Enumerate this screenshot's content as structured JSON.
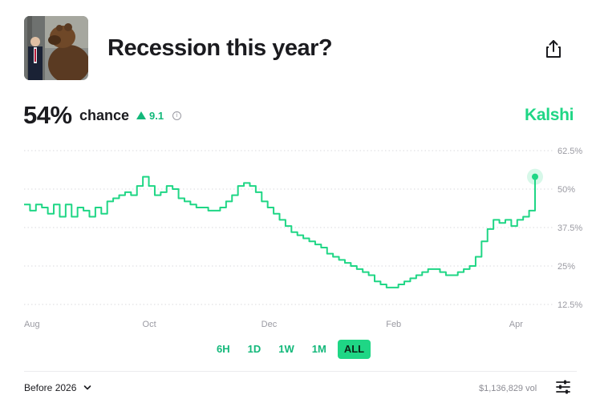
{
  "market": {
    "title": "Recession this year?",
    "brand": "Kalshi"
  },
  "summary": {
    "probability": "54%",
    "probability_label": "chance",
    "change": "9.1",
    "change_direction": "up"
  },
  "range_buttons": [
    {
      "label": "6H",
      "active": false
    },
    {
      "label": "1D",
      "active": false
    },
    {
      "label": "1W",
      "active": false
    },
    {
      "label": "1M",
      "active": false
    },
    {
      "label": "ALL",
      "active": true
    }
  ],
  "footer": {
    "market_select": "Before 2026",
    "volume": "$1,136,829 vol"
  },
  "colors": {
    "accent": "#1fd685",
    "positive": "#13b87a",
    "text": "#1b1b1f",
    "muted": "#8b8b93"
  },
  "icons": [
    "share-icon",
    "info-icon",
    "chevron-down-icon",
    "sliders-icon",
    "triangle-up-icon"
  ],
  "chart_data": {
    "type": "line",
    "title": "",
    "xlabel": "",
    "ylabel": "",
    "x_ticks": [
      "Aug",
      "Oct",
      "Dec",
      "Feb",
      "Apr"
    ],
    "y_ticks": [
      "62.5%",
      "50%",
      "37.5%",
      "25%",
      "12.5%"
    ],
    "ylim": [
      12.5,
      62.5
    ],
    "y_axis_side": "right",
    "grid": "dotted horizontal",
    "series": [
      {
        "values": [
          45,
          43,
          45,
          44,
          42,
          45,
          41,
          45,
          41,
          44,
          43,
          41,
          44,
          42,
          46,
          47,
          48,
          49,
          48,
          51,
          54,
          51,
          48,
          49,
          51,
          50,
          47,
          46,
          45,
          44,
          44,
          43,
          43,
          44,
          46,
          48,
          51,
          52,
          51,
          49,
          46,
          44,
          42,
          40,
          38,
          36,
          35,
          34,
          33,
          32,
          31,
          29,
          28,
          27,
          26,
          25,
          24,
          23,
          22,
          20,
          19,
          18,
          18,
          19,
          20,
          21,
          22,
          23,
          24,
          24,
          23,
          22,
          22,
          23,
          24,
          25,
          28,
          33,
          37,
          40,
          39,
          40,
          38,
          40,
          41,
          43,
          54
        ]
      }
    ],
    "x_tick_indices": [
      0,
      21,
      41,
      62,
      83
    ],
    "end_marker": true
  }
}
